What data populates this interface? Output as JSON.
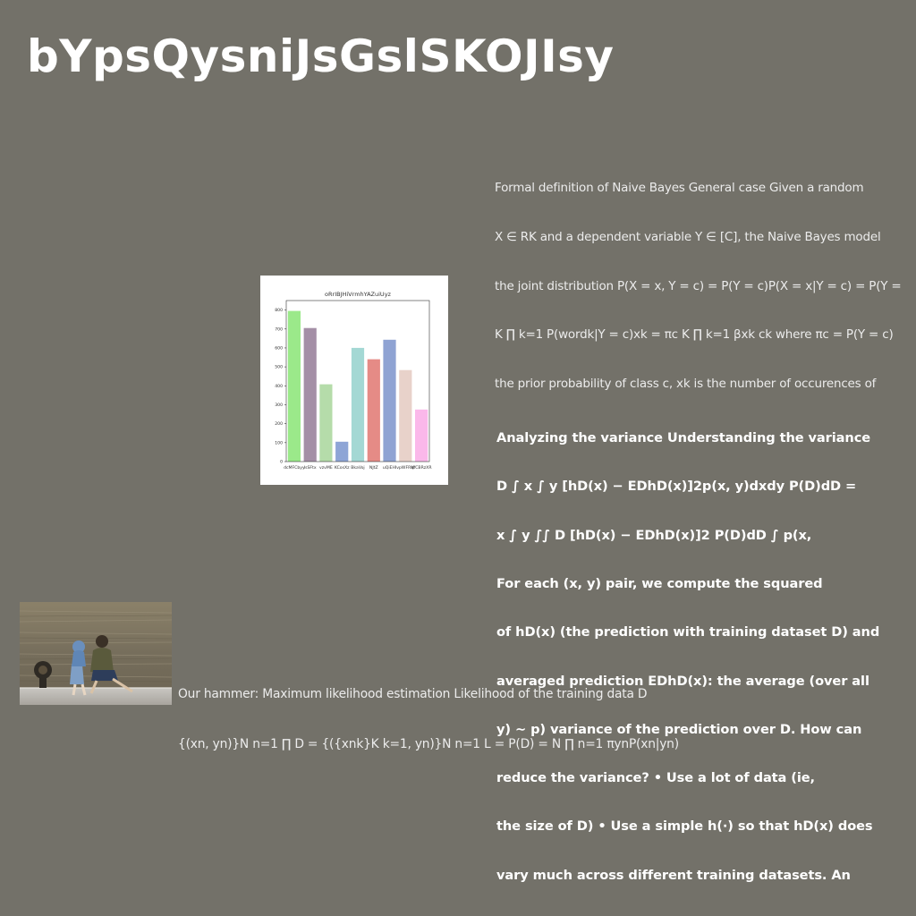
{
  "title": "bYpsQysniJsGslSKOJIsy",
  "blocks": {
    "naive_bayes": [
      "Formal definition of Naive Bayes General case Given a random",
      "X ∈ RK and a dependent variable Y ∈ [C], the Naive Bayes model",
      "the joint distribution P(X = x, Y = c) = P(Y = c)P(X = x|Y = c) = P(Y =",
      "K ∏ k=1 P(wordk|Y = c)xk = πc K ∏ k=1 βxk ck where πc = P(Y = c)",
      "the prior probability of class c, xk is the number of occurences of"
    ],
    "variance": [
      "Analyzing the variance Understanding the variance",
      "D ∫ x ∫ y [hD(x) − EDhD(x)]2p(x, y)dxdy P(D)dD =",
      "x ∫ y ∫∫ D [hD(x) − EDhD(x)]2 P(D)dD ∫ p(x,",
      "For each (x, y) pair, we compute the squared",
      "of hD(x) (the prediction with training dataset D) and",
      "averaged prediction EDhD(x): the average (over all",
      "y) ∼ p) variance of the prediction over D. How can",
      "reduce the variance? • Use a lot of data (ie,",
      "the size of D) • Use a simple h(·) so that hD(x) does",
      "vary much across different training datasets. An"
    ],
    "mle": [
      "Our hammer: Maximum likelihood estimation Likelihood of the training data D",
      "{(xn, yn)}N n=1 ∏ D = {({xnk}K k=1, yn)}N n=1 L = P(D) = N ∏ n=1 πynP(xn|yn)"
    ]
  },
  "chart_data": {
    "type": "bar",
    "title": "oRrIBJHiVrmhYAZuiUyz",
    "categories": [
      "dcMFCbyy",
      "lsSFtx",
      "vzvME",
      "KCosXz",
      "BkaVoj",
      "NJtZ",
      "uQiEHI",
      "vpWFRM",
      "qfCBRzXR"
    ],
    "values": [
      795,
      705,
      408,
      105,
      600,
      540,
      643,
      483,
      275
    ],
    "colors": [
      "#9be98a",
      "#a48fa6",
      "#b5dcaa",
      "#8ea5d6",
      "#a4d8d4",
      "#e58b86",
      "#8fa3d3",
      "#e8d2ca",
      "#fbb8ea"
    ],
    "ylim": [
      0,
      850
    ],
    "yticks": [
      "0",
      "100",
      "200",
      "300",
      "400",
      "500",
      "600",
      "700",
      "800"
    ],
    "xlabel": "",
    "ylabel": ""
  },
  "photo": {
    "description_icon": "photo-icon"
  }
}
